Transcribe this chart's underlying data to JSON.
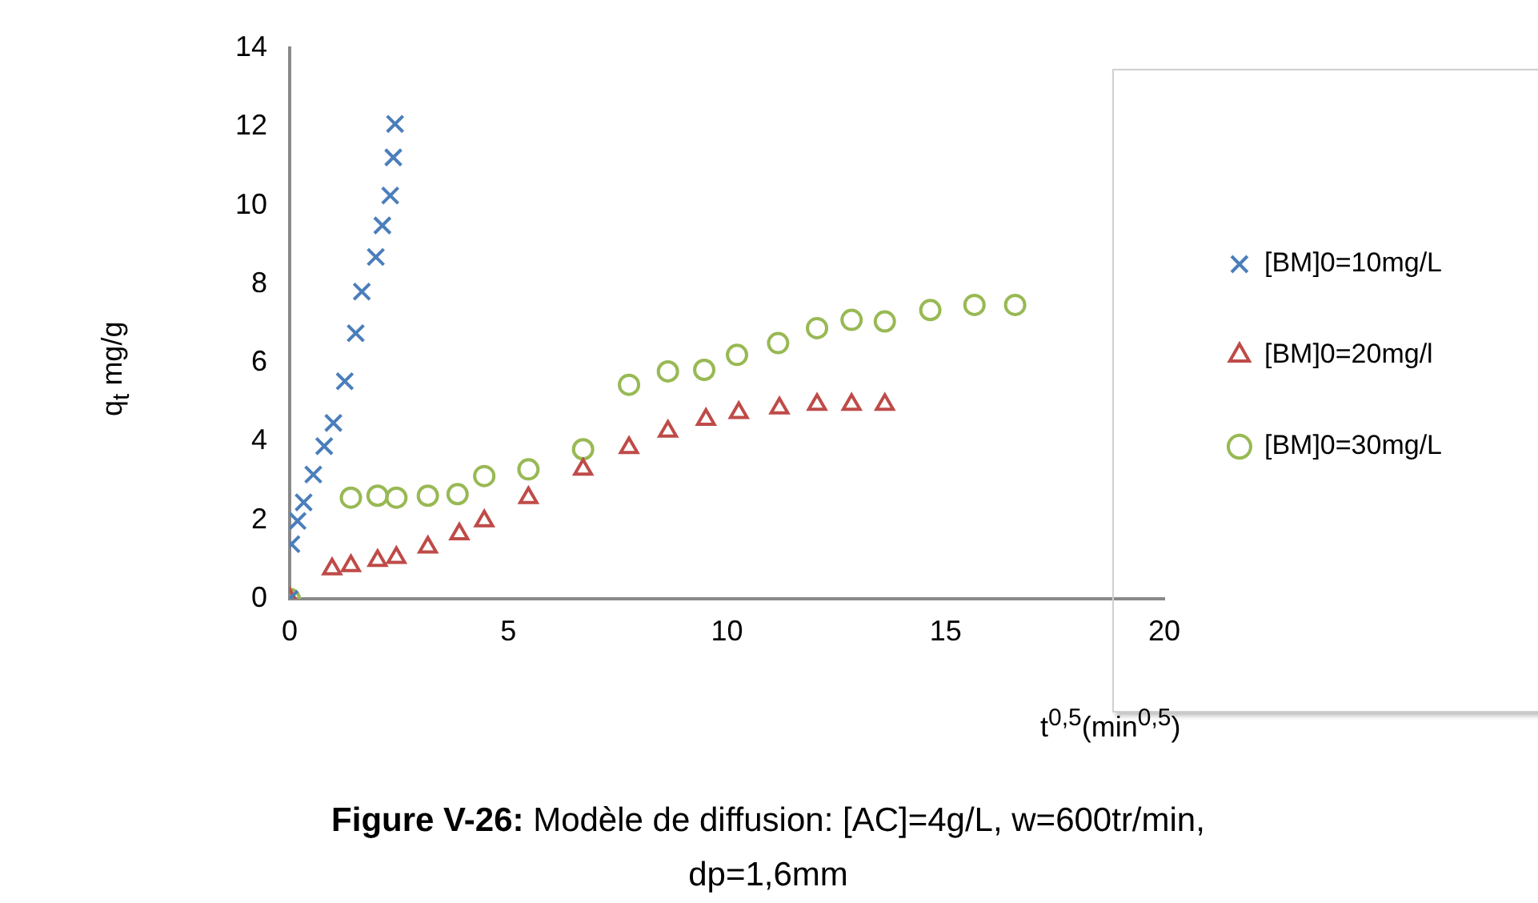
{
  "chart_data": {
    "type": "scatter",
    "title": "Figure V-26: Modèle de diffusion: [AC]=4g/L, w=600tr/min, dp=1,6mm",
    "xlabel": "t$^{0,5}$(min$^{0,5}$)",
    "ylabel": "q$_{t}$ mg/g",
    "xlim": [
      0,
      20
    ],
    "xticks": [
      0,
      5,
      10,
      15,
      20
    ],
    "ylim": [
      0,
      14
    ],
    "yticks": [
      0,
      2,
      4,
      6,
      8,
      10,
      12,
      14
    ],
    "grid": false,
    "legend": "right",
    "series": [
      {
        "name": "[BM]0=10mg/L",
        "color": "#4a7ebb",
        "marker": "cross",
        "x": [
          0,
          0.04,
          0.18,
          0.32,
          0.54,
          0.79,
          1.0,
          1.26,
          1.51,
          1.65,
          1.97,
          2.12,
          2.3,
          2.37,
          2.41
        ],
        "values": [
          0,
          1.39,
          1.98,
          2.45,
          3.16,
          3.88,
          4.47,
          5.53,
          6.75,
          7.81,
          8.69,
          9.49,
          10.25,
          11.22,
          12.07
        ]
      },
      {
        "name": "[BM]0=20mg/l",
        "color": "#be4b48",
        "marker": "triangle",
        "x": [
          0,
          0.97,
          1.4,
          2.01,
          2.44,
          3.16,
          3.88,
          4.45,
          5.46,
          6.71,
          7.76,
          8.65,
          9.52,
          10.27,
          11.2,
          12.06,
          12.85,
          13.61
        ],
        "values": [
          0,
          0.76,
          0.84,
          0.97,
          1.05,
          1.31,
          1.65,
          1.98,
          2.57,
          3.29,
          3.84,
          4.26,
          4.56,
          4.73,
          4.85,
          4.94,
          4.94,
          4.94
        ]
      },
      {
        "name": "[BM]0=30mg/L",
        "color": "#98b954",
        "marker": "circle",
        "x": [
          0,
          1.4,
          2.01,
          2.44,
          3.16,
          3.84,
          4.45,
          5.46,
          6.71,
          7.76,
          8.65,
          9.48,
          10.23,
          11.17,
          12.06,
          12.85,
          13.61,
          14.65,
          15.66,
          16.59
        ],
        "values": [
          0,
          2.57,
          2.62,
          2.57,
          2.62,
          2.66,
          3.12,
          3.29,
          3.8,
          5.44,
          5.78,
          5.82,
          6.2,
          6.5,
          6.88,
          7.09,
          7.05,
          7.34,
          7.47,
          7.47
        ]
      }
    ]
  }
}
